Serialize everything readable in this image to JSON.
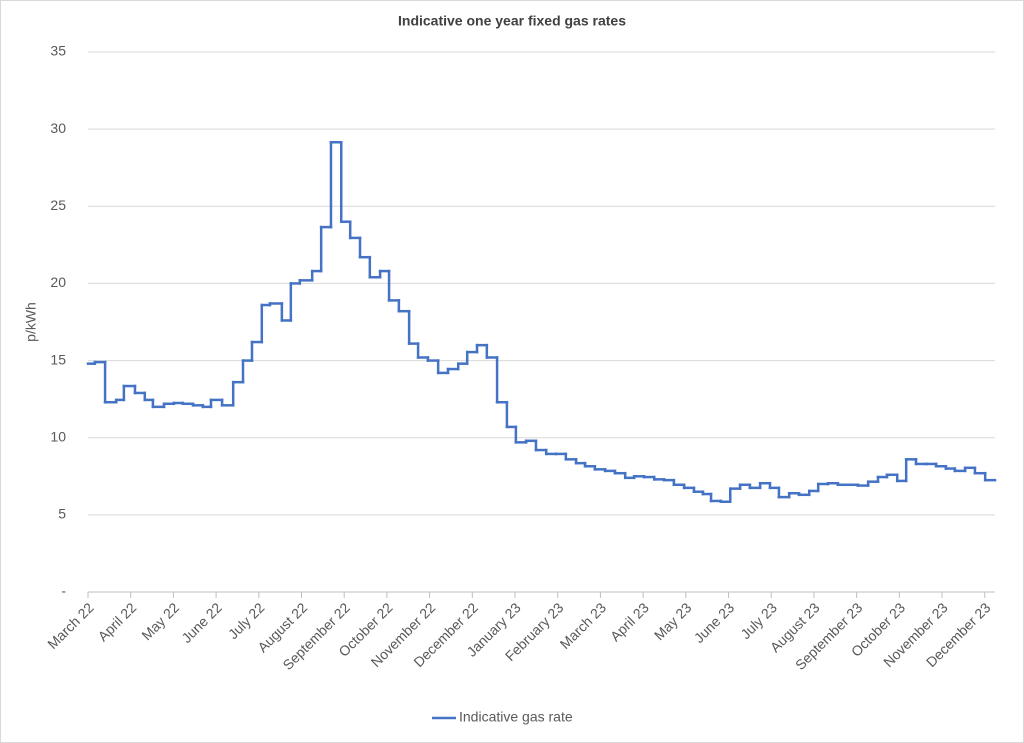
{
  "chart_data": {
    "type": "line",
    "step": true,
    "title": "Indicative one year fixed gas rates",
    "y_label": "p/kWh",
    "x": [
      0,
      0.16,
      0.4,
      0.66,
      0.84,
      1.1,
      1.33,
      1.52,
      1.78,
      2.01,
      2.22,
      2.46,
      2.69,
      2.88,
      3.14,
      3.4,
      3.63,
      3.84,
      4.07,
      4.26,
      4.54,
      4.75,
      4.96,
      5.25,
      5.46,
      5.69,
      5.93,
      6.14,
      6.37,
      6.6,
      6.84,
      7.05,
      7.28,
      7.52,
      7.73,
      7.96,
      8.2,
      8.43,
      8.67,
      8.88,
      9.11,
      9.34,
      9.58,
      9.81,
      10.02,
      10.26,
      10.49,
      10.73,
      10.96,
      11.19,
      11.43,
      11.64,
      11.87,
      12.11,
      12.34,
      12.58,
      12.79,
      13.02,
      13.26,
      13.49,
      13.72,
      13.96,
      14.19,
      14.4,
      14.59,
      14.82,
      15.04,
      15.27,
      15.5,
      15.74,
      15.97,
      16.18,
      16.42,
      16.65,
      16.89,
      17.1,
      17.33,
      17.56,
      17.8,
      18.03,
      18.27,
      18.5,
      18.71,
      18.95,
      19.16,
      19.39,
      19.63,
      19.86,
      20.09,
      20.3,
      20.54,
      20.77,
      21.01
    ],
    "series": [
      {
        "name": "Indicative gas rate",
        "color": "#4472c4",
        "values": [
          14.8,
          14.9,
          12.3,
          12.45,
          13.35,
          12.9,
          12.45,
          12.0,
          12.2,
          12.25,
          12.2,
          12.1,
          12.0,
          12.45,
          12.1,
          13.6,
          15.0,
          16.2,
          18.6,
          18.7,
          17.6,
          20.0,
          20.2,
          20.8,
          23.65,
          29.15,
          24.0,
          22.95,
          21.7,
          20.4,
          20.8,
          18.9,
          18.2,
          16.1,
          15.2,
          15.0,
          14.2,
          14.45,
          14.8,
          15.55,
          16.0,
          15.2,
          12.3,
          10.7,
          9.7,
          9.8,
          9.2,
          8.95,
          8.95,
          8.6,
          8.35,
          8.15,
          7.95,
          7.85,
          7.7,
          7.4,
          7.5,
          7.45,
          7.3,
          7.25,
          6.95,
          6.75,
          6.5,
          6.35,
          5.9,
          5.85,
          6.7,
          6.95,
          6.75,
          7.05,
          6.75,
          6.15,
          6.4,
          6.3,
          6.55,
          7.0,
          7.05,
          6.95,
          6.95,
          6.9,
          7.15,
          7.45,
          7.6,
          7.2,
          8.6,
          8.3,
          8.3,
          8.15,
          8.0,
          7.85,
          8.05,
          7.7,
          7.25
        ]
      }
    ],
    "xlim": [
      0,
      21.24
    ],
    "xticks": [
      {
        "value": 0,
        "label": "March 22"
      },
      {
        "value": 1,
        "label": "April 22"
      },
      {
        "value": 2,
        "label": "May 22"
      },
      {
        "value": 3,
        "label": "June 22"
      },
      {
        "value": 4,
        "label": "July 22"
      },
      {
        "value": 5,
        "label": "August 22"
      },
      {
        "value": 6,
        "label": "September 22"
      },
      {
        "value": 7,
        "label": "October 22"
      },
      {
        "value": 8,
        "label": "November 22"
      },
      {
        "value": 9,
        "label": "December 22"
      },
      {
        "value": 10,
        "label": "January 23"
      },
      {
        "value": 11,
        "label": "February 23"
      },
      {
        "value": 12,
        "label": "March 23"
      },
      {
        "value": 13,
        "label": "April 23"
      },
      {
        "value": 14,
        "label": "May 23"
      },
      {
        "value": 15,
        "label": "June 23"
      },
      {
        "value": 16,
        "label": "July 23"
      },
      {
        "value": 17,
        "label": "August 23"
      },
      {
        "value": 18,
        "label": "September 23"
      },
      {
        "value": 19,
        "label": "October 23"
      },
      {
        "value": 20,
        "label": "November 23"
      },
      {
        "value": 21,
        "label": "December 23"
      }
    ],
    "ylim": [
      0,
      35
    ],
    "yticks": [
      {
        "value": 0,
        "label": "-"
      },
      5,
      10,
      15,
      20,
      25,
      30,
      35
    ],
    "grid": true,
    "legend": "bottom"
  }
}
